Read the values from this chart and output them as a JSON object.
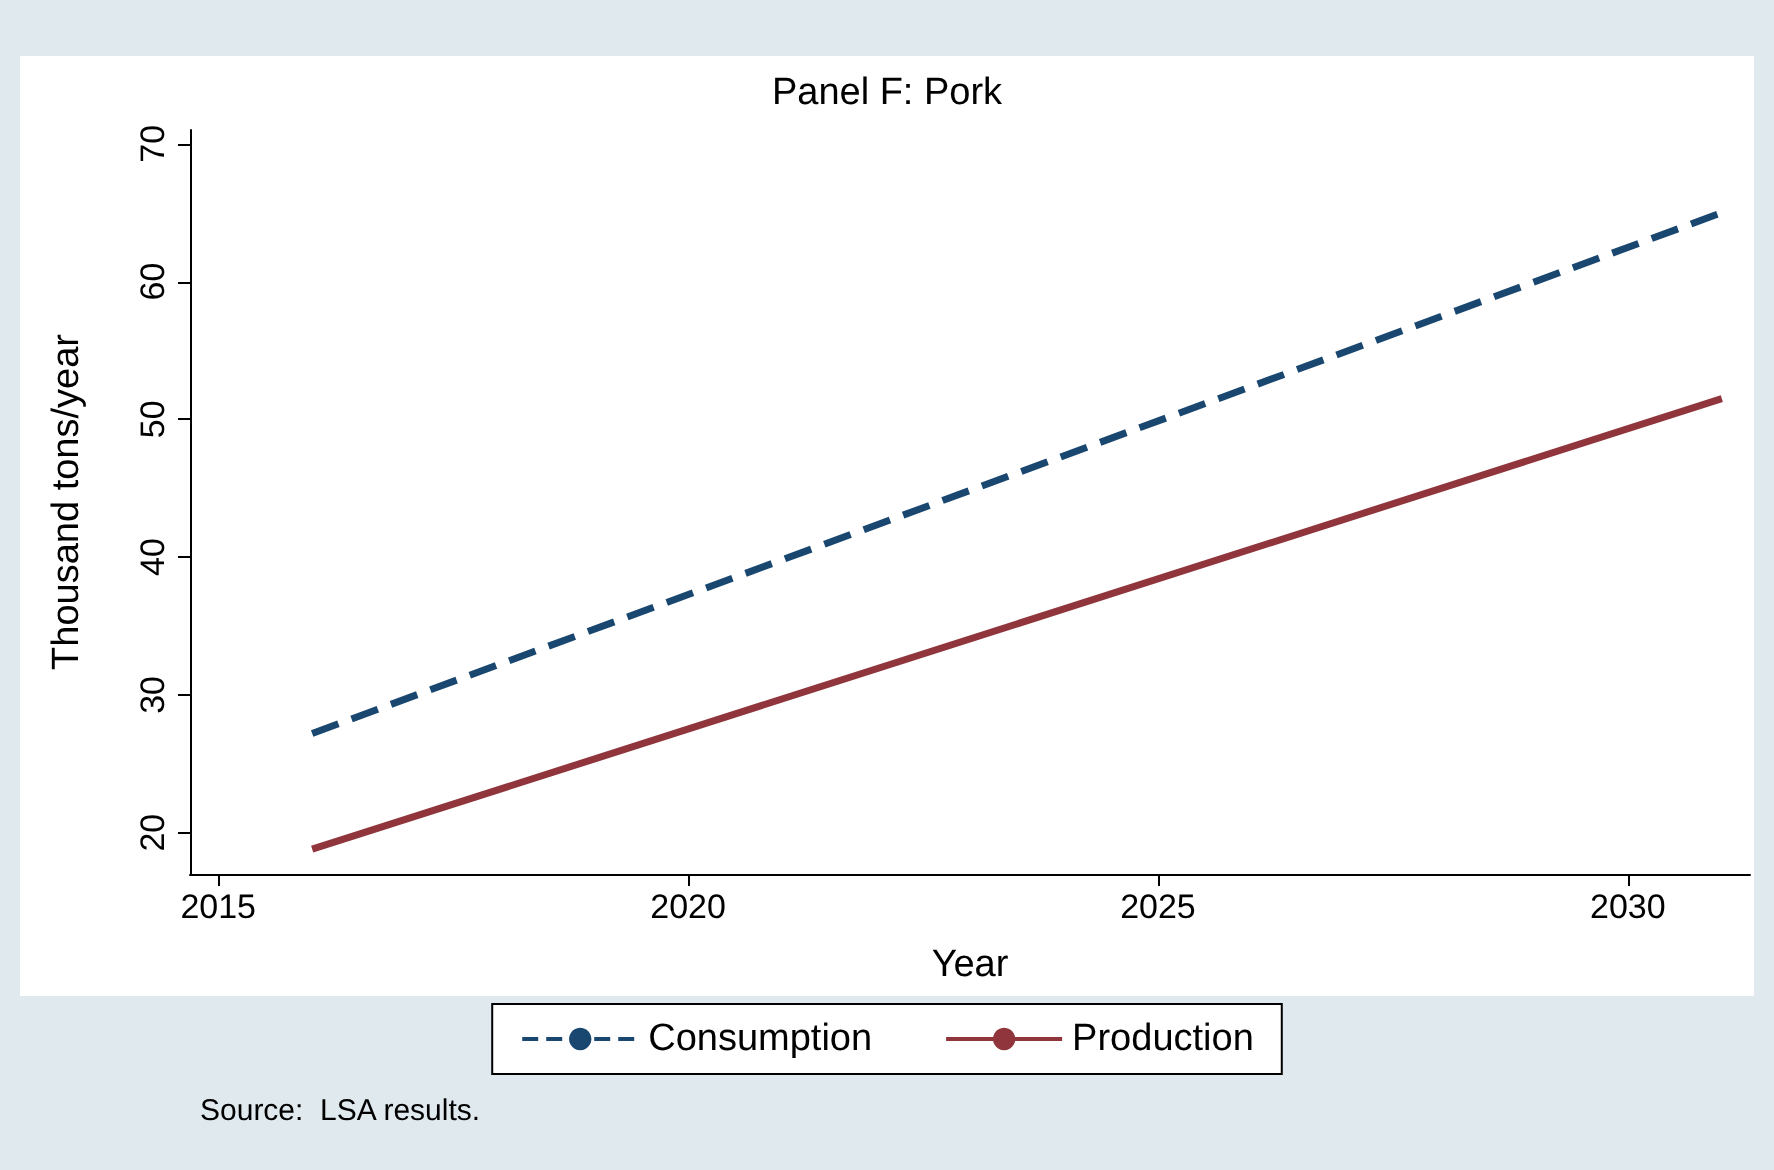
{
  "chart_data": {
    "type": "line",
    "title": "Panel F: Pork",
    "xlabel": "Year",
    "ylabel": "Thousand tons/year",
    "x": [
      2016,
      2031
    ],
    "series": [
      {
        "name": "Consumption",
        "color": "#1a476f",
        "line_style": "dashed",
        "values": [
          27.2,
          65
        ]
      },
      {
        "name": "Production",
        "color": "#90353b",
        "line_style": "solid",
        "values": [
          18.8,
          51.5
        ]
      }
    ],
    "xlim": [
      2014.7,
      2031.3
    ],
    "xticks": [
      2015,
      2020,
      2025,
      2030
    ],
    "ylim": [
      17,
      71
    ],
    "yticks": [
      20,
      30,
      40,
      50,
      60,
      70
    ],
    "grid": false,
    "legend": "bottom",
    "marker": "none",
    "annotations": [
      "Source:  LSA results."
    ]
  }
}
